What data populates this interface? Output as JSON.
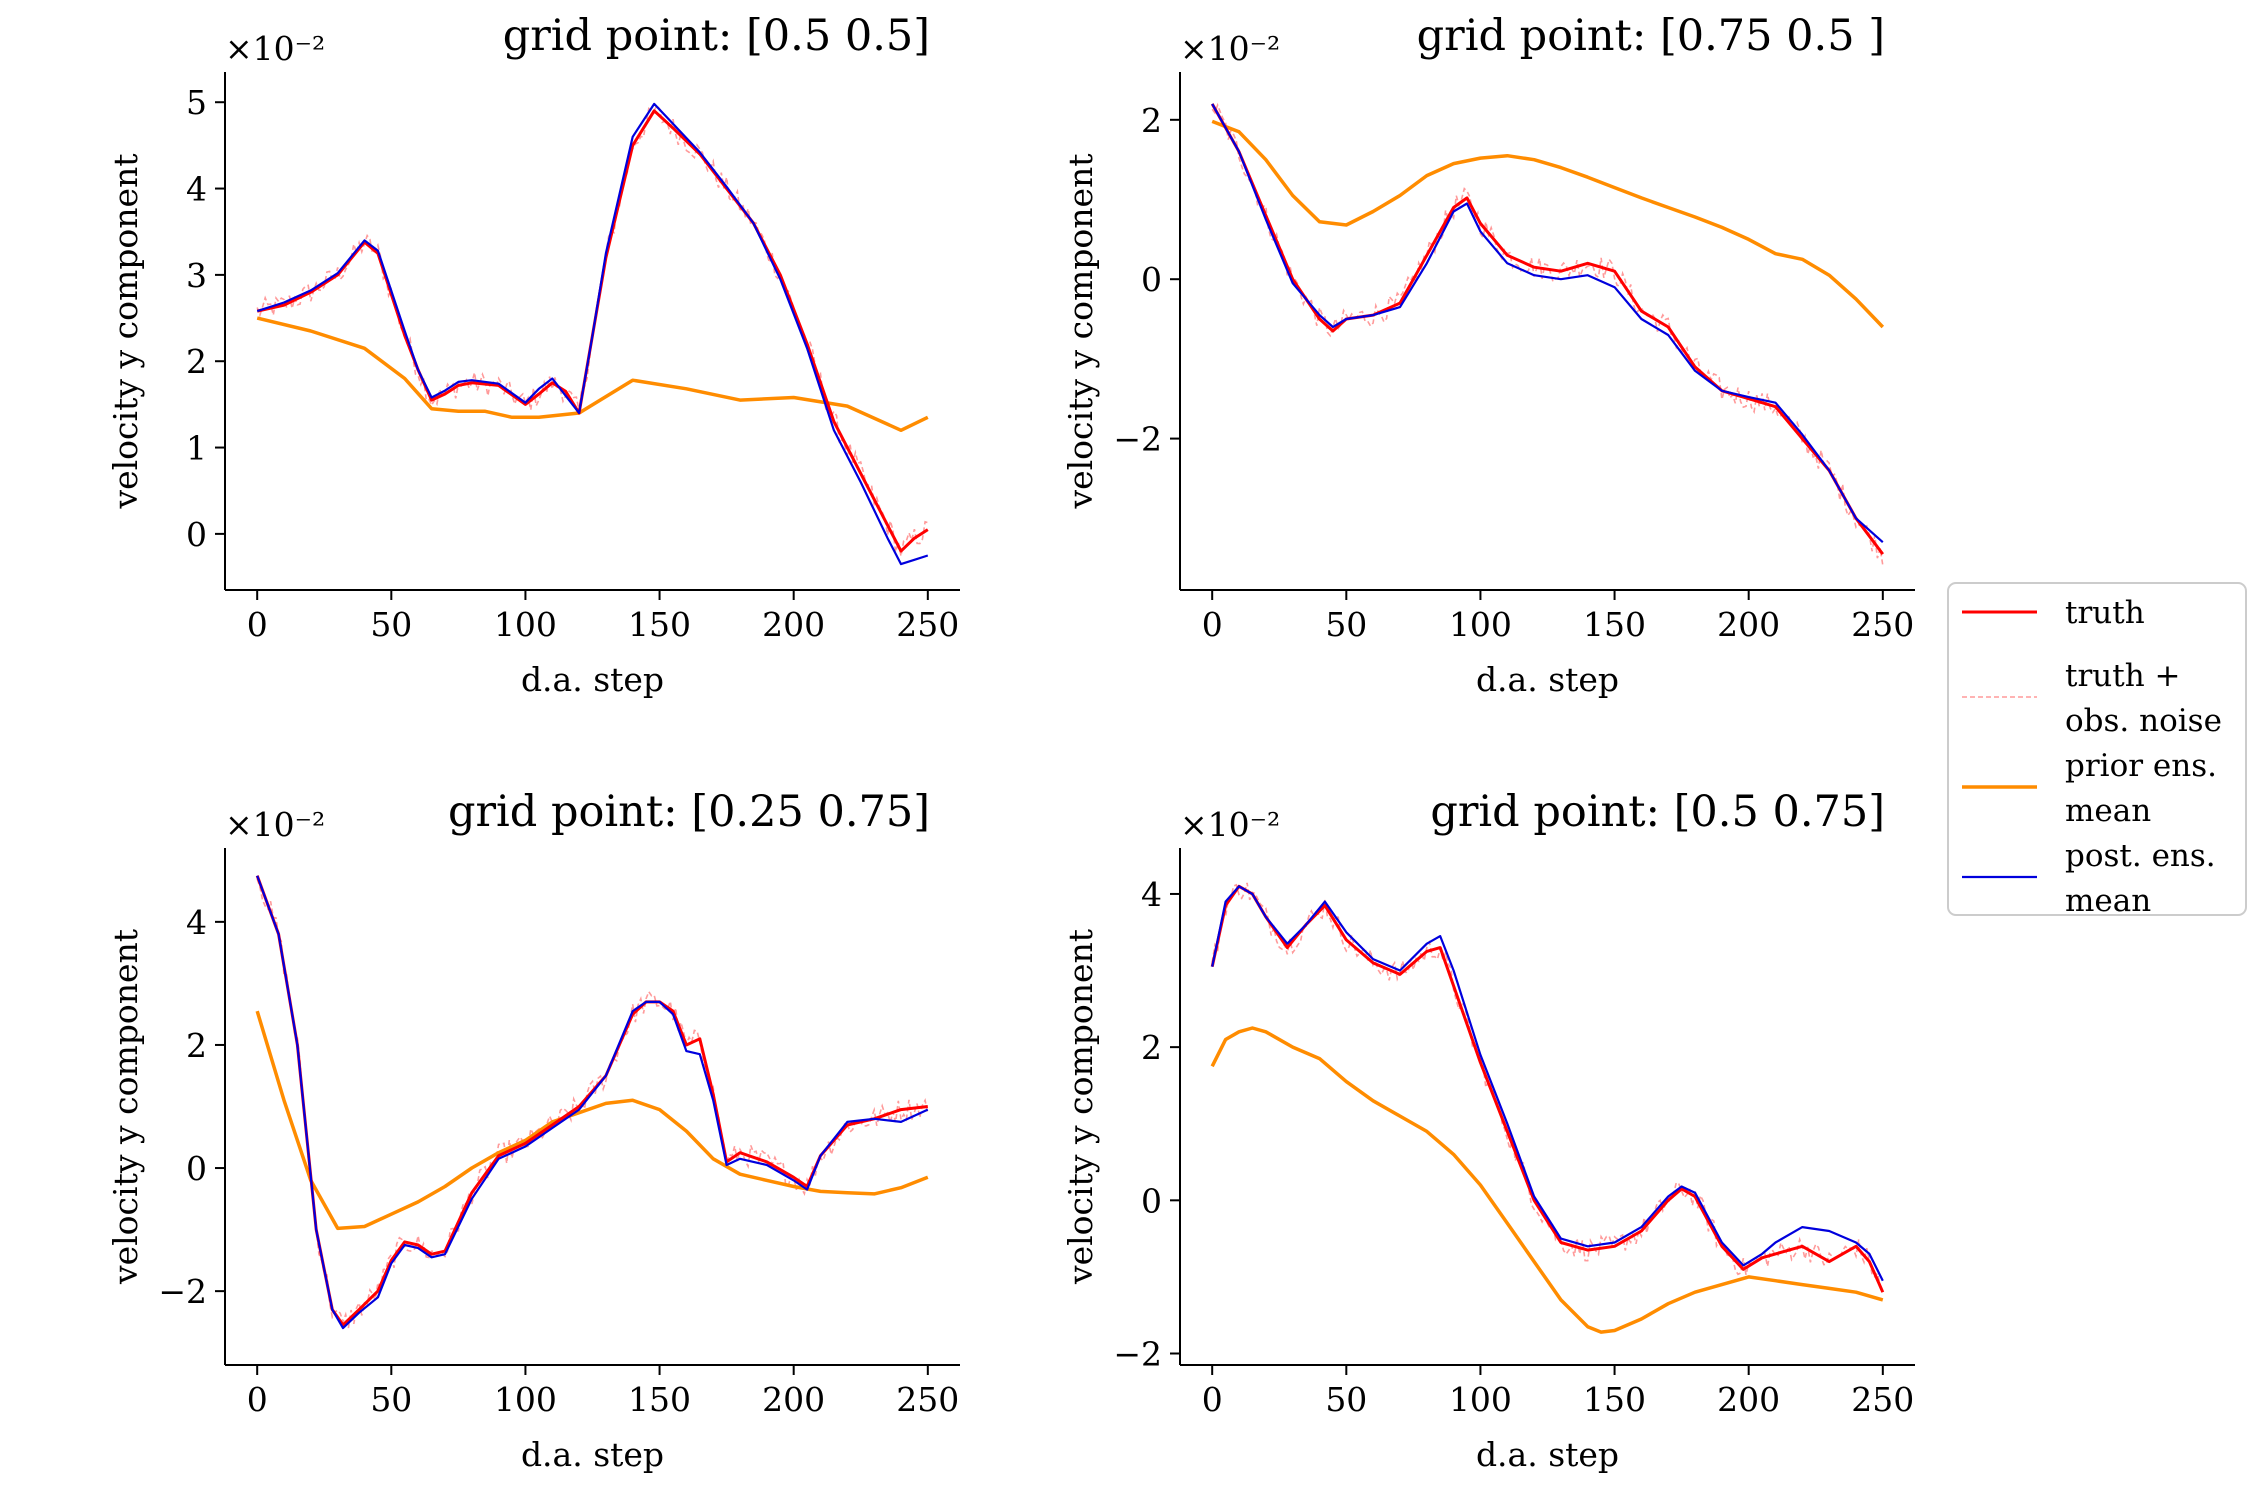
{
  "chart_data": [
    {
      "type": "line",
      "title": "grid point: [0.5 0.5]",
      "xlabel": "d.a. step",
      "ylabel": "velocity y component",
      "multiplier": "×10⁻²",
      "xlim": [
        -12,
        262
      ],
      "ylim": [
        -0.65,
        5.35
      ],
      "xticks": [
        0,
        50,
        100,
        150,
        200,
        250
      ],
      "yticks": [
        0,
        1,
        2,
        3,
        4,
        5
      ],
      "yticklabels": [
        "0",
        "1",
        "2",
        "3",
        "4",
        "5"
      ],
      "series": [
        {
          "key": "prior",
          "name": "prior ens. mean",
          "x": [
            0,
            20,
            40,
            55,
            65,
            75,
            85,
            95,
            105,
            120,
            140,
            160,
            180,
            200,
            220,
            240,
            250
          ],
          "y": [
            2.5,
            2.35,
            2.15,
            1.8,
            1.45,
            1.42,
            1.42,
            1.35,
            1.35,
            1.4,
            1.78,
            1.68,
            1.55,
            1.58,
            1.48,
            1.2,
            1.35
          ]
        },
        {
          "key": "truth",
          "name": "truth",
          "x": [
            0,
            10,
            20,
            30,
            40,
            45,
            55,
            60,
            65,
            70,
            75,
            80,
            90,
            100,
            105,
            110,
            115,
            120,
            125,
            130,
            140,
            148,
            155,
            165,
            175,
            185,
            195,
            205,
            215,
            225,
            235,
            240,
            245,
            250
          ],
          "y": [
            2.58,
            2.65,
            2.8,
            3.0,
            3.38,
            3.25,
            2.3,
            1.9,
            1.55,
            1.62,
            1.72,
            1.75,
            1.72,
            1.5,
            1.62,
            1.75,
            1.65,
            1.4,
            2.3,
            3.2,
            4.5,
            4.9,
            4.7,
            4.4,
            4.0,
            3.6,
            3.0,
            2.2,
            1.3,
            0.7,
            0.1,
            -0.2,
            -0.05,
            0.05
          ]
        },
        {
          "key": "post",
          "name": "post. ens. mean",
          "x": [
            0,
            10,
            20,
            30,
            40,
            45,
            55,
            60,
            65,
            70,
            75,
            80,
            90,
            100,
            105,
            110,
            115,
            120,
            125,
            130,
            140,
            148,
            155,
            165,
            175,
            185,
            195,
            205,
            215,
            225,
            235,
            240,
            245,
            250
          ],
          "y": [
            2.58,
            2.68,
            2.82,
            3.02,
            3.4,
            3.28,
            2.35,
            1.9,
            1.58,
            1.66,
            1.76,
            1.78,
            1.74,
            1.52,
            1.68,
            1.8,
            1.6,
            1.4,
            2.3,
            3.25,
            4.6,
            4.98,
            4.75,
            4.42,
            4.02,
            3.6,
            2.95,
            2.15,
            1.2,
            0.6,
            -0.05,
            -0.35,
            -0.3,
            -0.25
          ]
        }
      ]
    },
    {
      "type": "line",
      "title": "grid point: [0.75 0.5 ]",
      "xlabel": "d.a. step",
      "ylabel": "velocity y component",
      "multiplier": "×10⁻²",
      "xlim": [
        -12,
        262
      ],
      "ylim": [
        -3.9,
        2.6
      ],
      "xticks": [
        0,
        50,
        100,
        150,
        200,
        250
      ],
      "yticks": [
        -2,
        0,
        2
      ],
      "yticklabels": [
        "−2",
        "0",
        "2"
      ],
      "series": [
        {
          "key": "prior",
          "name": "prior ens. mean",
          "x": [
            0,
            10,
            20,
            30,
            40,
            50,
            60,
            70,
            80,
            90,
            100,
            110,
            120,
            130,
            140,
            150,
            160,
            170,
            180,
            190,
            200,
            210,
            220,
            230,
            240,
            250
          ],
          "y": [
            1.98,
            1.85,
            1.5,
            1.05,
            0.72,
            0.68,
            0.85,
            1.05,
            1.3,
            1.45,
            1.52,
            1.55,
            1.5,
            1.4,
            1.28,
            1.15,
            1.02,
            0.9,
            0.78,
            0.65,
            0.5,
            0.32,
            0.25,
            0.05,
            -0.25,
            -0.6
          ]
        },
        {
          "key": "truth",
          "name": "truth",
          "x": [
            0,
            10,
            20,
            30,
            40,
            45,
            50,
            60,
            70,
            80,
            90,
            95,
            100,
            110,
            120,
            130,
            140,
            150,
            160,
            170,
            180,
            190,
            200,
            210,
            220,
            230,
            240,
            250
          ],
          "y": [
            2.2,
            1.6,
            0.8,
            0.0,
            -0.5,
            -0.65,
            -0.5,
            -0.45,
            -0.3,
            0.3,
            0.9,
            1.02,
            0.7,
            0.3,
            0.15,
            0.1,
            0.2,
            0.1,
            -0.4,
            -0.6,
            -1.1,
            -1.4,
            -1.5,
            -1.6,
            -2.0,
            -2.4,
            -3.0,
            -3.45
          ]
        },
        {
          "key": "post",
          "name": "post. ens. mean",
          "x": [
            0,
            10,
            20,
            30,
            40,
            45,
            50,
            60,
            70,
            80,
            90,
            95,
            100,
            110,
            120,
            130,
            140,
            150,
            160,
            170,
            180,
            190,
            200,
            210,
            220,
            230,
            240,
            250
          ],
          "y": [
            2.2,
            1.6,
            0.75,
            -0.05,
            -0.45,
            -0.6,
            -0.5,
            -0.45,
            -0.35,
            0.2,
            0.85,
            0.95,
            0.6,
            0.2,
            0.05,
            0.0,
            0.05,
            -0.1,
            -0.5,
            -0.7,
            -1.15,
            -1.4,
            -1.48,
            -1.55,
            -1.95,
            -2.4,
            -3.0,
            -3.3
          ]
        }
      ]
    },
    {
      "type": "line",
      "title": "grid point: [0.25 0.75]",
      "xlabel": "d.a. step",
      "ylabel": "velocity y component",
      "multiplier": "×10⁻²",
      "xlim": [
        -12,
        262
      ],
      "ylim": [
        -3.2,
        5.2
      ],
      "xticks": [
        0,
        50,
        100,
        150,
        200,
        250
      ],
      "yticks": [
        -2,
        0,
        2,
        4
      ],
      "yticklabels": [
        "−2",
        "0",
        "2",
        "4"
      ],
      "series": [
        {
          "key": "prior",
          "name": "prior ens. mean",
          "x": [
            0,
            10,
            20,
            30,
            40,
            50,
            60,
            70,
            80,
            90,
            100,
            110,
            120,
            130,
            140,
            150,
            160,
            170,
            180,
            190,
            200,
            210,
            220,
            230,
            240,
            250
          ],
          "y": [
            2.55,
            1.1,
            -0.2,
            -0.98,
            -0.95,
            -0.75,
            -0.55,
            -0.3,
            0.0,
            0.25,
            0.45,
            0.75,
            0.9,
            1.05,
            1.1,
            0.95,
            0.6,
            0.15,
            -0.1,
            -0.2,
            -0.3,
            -0.38,
            -0.4,
            -0.42,
            -0.32,
            -0.15
          ]
        },
        {
          "key": "truth",
          "name": "truth",
          "x": [
            0,
            8,
            15,
            22,
            28,
            32,
            38,
            45,
            50,
            55,
            60,
            65,
            70,
            80,
            90,
            100,
            110,
            120,
            130,
            140,
            145,
            150,
            155,
            160,
            165,
            170,
            175,
            180,
            190,
            200,
            205,
            210,
            220,
            230,
            240,
            250
          ],
          "y": [
            4.75,
            3.8,
            2.0,
            -1.0,
            -2.3,
            -2.55,
            -2.3,
            -2.0,
            -1.5,
            -1.2,
            -1.25,
            -1.4,
            -1.35,
            -0.4,
            0.2,
            0.4,
            0.7,
            1.0,
            1.5,
            2.5,
            2.7,
            2.7,
            2.55,
            2.0,
            2.1,
            1.2,
            0.1,
            0.25,
            0.1,
            -0.15,
            -0.3,
            0.2,
            0.7,
            0.8,
            0.95,
            1.0
          ]
        },
        {
          "key": "post",
          "name": "post. ens. mean",
          "x": [
            0,
            8,
            15,
            22,
            28,
            32,
            38,
            45,
            50,
            55,
            60,
            65,
            70,
            80,
            90,
            100,
            110,
            120,
            130,
            140,
            145,
            150,
            155,
            160,
            165,
            170,
            175,
            180,
            190,
            200,
            205,
            210,
            220,
            230,
            240,
            250
          ],
          "y": [
            4.75,
            3.8,
            2.0,
            -1.0,
            -2.3,
            -2.6,
            -2.35,
            -2.1,
            -1.55,
            -1.25,
            -1.3,
            -1.45,
            -1.4,
            -0.5,
            0.15,
            0.35,
            0.65,
            0.95,
            1.5,
            2.55,
            2.7,
            2.7,
            2.5,
            1.9,
            1.85,
            1.1,
            0.05,
            0.15,
            0.05,
            -0.2,
            -0.35,
            0.2,
            0.75,
            0.8,
            0.75,
            0.95
          ]
        }
      ]
    },
    {
      "type": "line",
      "title": "grid point: [0.5 0.75]",
      "xlabel": "d.a. step",
      "ylabel": "velocity y component",
      "multiplier": "×10⁻²",
      "xlim": [
        -12,
        262
      ],
      "ylim": [
        -2.15,
        4.6
      ],
      "xticks": [
        0,
        50,
        100,
        150,
        200,
        250
      ],
      "yticks": [
        -2,
        0,
        2,
        4
      ],
      "yticklabels": [
        "−2",
        "0",
        "2",
        "4"
      ],
      "series": [
        {
          "key": "prior",
          "name": "prior ens. mean",
          "x": [
            0,
            5,
            10,
            15,
            20,
            30,
            40,
            50,
            60,
            70,
            80,
            90,
            100,
            110,
            120,
            130,
            140,
            145,
            150,
            160,
            170,
            180,
            190,
            200,
            210,
            220,
            230,
            240,
            250
          ],
          "y": [
            1.75,
            2.1,
            2.2,
            2.25,
            2.2,
            2.0,
            1.85,
            1.55,
            1.3,
            1.1,
            0.9,
            0.6,
            0.2,
            -0.3,
            -0.8,
            -1.3,
            -1.65,
            -1.72,
            -1.7,
            -1.55,
            -1.35,
            -1.2,
            -1.1,
            -1.0,
            -1.05,
            -1.1,
            -1.15,
            -1.2,
            -1.3
          ]
        },
        {
          "key": "truth",
          "name": "truth",
          "x": [
            0,
            5,
            10,
            15,
            20,
            28,
            35,
            42,
            50,
            60,
            70,
            80,
            85,
            90,
            100,
            110,
            120,
            130,
            140,
            150,
            160,
            170,
            175,
            180,
            190,
            198,
            205,
            210,
            220,
            230,
            240,
            245,
            250
          ],
          "y": [
            3.05,
            3.85,
            4.1,
            4.0,
            3.7,
            3.3,
            3.6,
            3.85,
            3.4,
            3.1,
            2.95,
            3.25,
            3.3,
            2.8,
            1.8,
            0.9,
            0.0,
            -0.55,
            -0.65,
            -0.6,
            -0.4,
            0.0,
            0.15,
            0.05,
            -0.6,
            -0.9,
            -0.75,
            -0.7,
            -0.6,
            -0.8,
            -0.6,
            -0.8,
            -1.2
          ]
        },
        {
          "key": "post",
          "name": "post. ens. mean",
          "x": [
            0,
            5,
            10,
            15,
            20,
            28,
            35,
            42,
            50,
            60,
            70,
            80,
            85,
            90,
            100,
            110,
            120,
            130,
            140,
            150,
            160,
            170,
            175,
            180,
            190,
            198,
            205,
            210,
            220,
            230,
            240,
            245,
            250
          ],
          "y": [
            3.05,
            3.9,
            4.1,
            4.0,
            3.7,
            3.35,
            3.6,
            3.9,
            3.5,
            3.15,
            3.0,
            3.35,
            3.45,
            3.0,
            1.9,
            1.0,
            0.05,
            -0.5,
            -0.6,
            -0.55,
            -0.35,
            0.05,
            0.18,
            0.1,
            -0.55,
            -0.85,
            -0.7,
            -0.55,
            -0.35,
            -0.4,
            -0.55,
            -0.7,
            -1.05
          ]
        }
      ]
    }
  ],
  "legend": {
    "position": "right",
    "entries": [
      {
        "key": "truth",
        "lines": [
          "truth"
        ]
      },
      {
        "key": "noise",
        "lines": [
          "truth +",
          "obs. noise"
        ]
      },
      {
        "key": "prior",
        "lines": [
          "prior ens.",
          "mean"
        ]
      },
      {
        "key": "post",
        "lines": [
          "post. ens.",
          "mean"
        ]
      }
    ]
  },
  "colors": {
    "truth": "#ff0000",
    "noise": "#ff9a9a",
    "prior": "#ff8c00",
    "post": "#0000dd",
    "axis": "#000000",
    "legend_border": "#cccccc"
  }
}
